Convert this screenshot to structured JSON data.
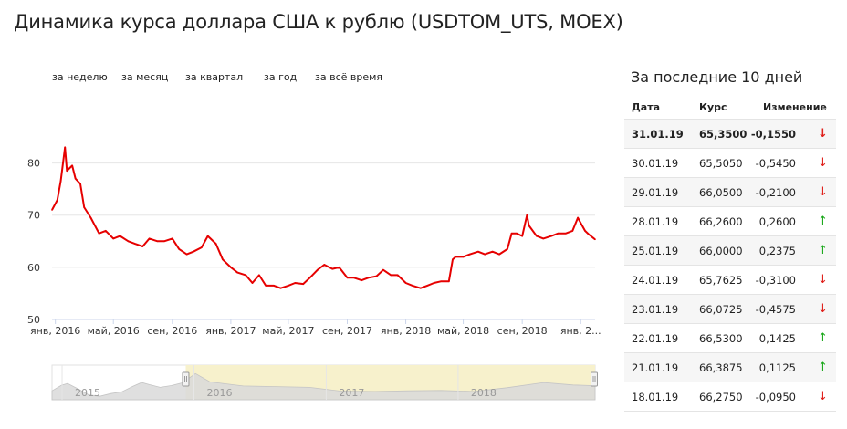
{
  "page": {
    "title": "Динамика курса доллара США к рублю (USDTOM_UTS, MOEX)"
  },
  "period_tabs": [
    {
      "label": "за неделю"
    },
    {
      "label": "за месяц"
    },
    {
      "label": "за квартал"
    },
    {
      "label": "за год"
    },
    {
      "label": "за всё время"
    }
  ],
  "table": {
    "title": "За последние 10 дней",
    "headers": {
      "date": "Дата",
      "rate": "Курс",
      "change": "Изменение"
    },
    "rows": [
      {
        "date": "31.01.19",
        "rate": "65,3500",
        "change": "-0,1550",
        "direction": "down"
      },
      {
        "date": "30.01.19",
        "rate": "65,5050",
        "change": "-0,5450",
        "direction": "down"
      },
      {
        "date": "29.01.19",
        "rate": "66,0500",
        "change": "-0,2100",
        "direction": "down"
      },
      {
        "date": "28.01.19",
        "rate": "66,2600",
        "change": "0,2600",
        "direction": "up"
      },
      {
        "date": "25.01.19",
        "rate": "66,0000",
        "change": "0,2375",
        "direction": "up"
      },
      {
        "date": "24.01.19",
        "rate": "65,7625",
        "change": "-0,3100",
        "direction": "down"
      },
      {
        "date": "23.01.19",
        "rate": "66,0725",
        "change": "-0,4575",
        "direction": "down"
      },
      {
        "date": "22.01.19",
        "rate": "66,5300",
        "change": "0,1425",
        "direction": "up"
      },
      {
        "date": "21.01.19",
        "rate": "66,3875",
        "change": "0,1125",
        "direction": "up"
      },
      {
        "date": "18.01.19",
        "rate": "66,2750",
        "change": "-0,0950",
        "direction": "down"
      }
    ],
    "arrow_down_char": "↓",
    "arrow_up_char": "↑",
    "colors": {
      "down": "#e0201b",
      "up": "#1ba81b"
    }
  },
  "chart_data": {
    "type": "line",
    "title": "",
    "xlabel": "",
    "ylabel": "",
    "ylim": [
      50,
      85
    ],
    "y_ticks": [
      50,
      60,
      70,
      80
    ],
    "grid": true,
    "series_color": "#e60000",
    "x_tick_labels": [
      {
        "date": "2016-01-01",
        "label": "янв, 2016"
      },
      {
        "date": "2016-05-01",
        "label": "май, 2016"
      },
      {
        "date": "2016-09-01",
        "label": "сен, 2016"
      },
      {
        "date": "2017-01-01",
        "label": "янв, 2017"
      },
      {
        "date": "2017-05-01",
        "label": "май, 2017"
      },
      {
        "date": "2017-09-01",
        "label": "сен, 2017"
      },
      {
        "date": "2018-01-01",
        "label": "янв, 2018"
      },
      {
        "date": "2018-05-01",
        "label": "май, 2018"
      },
      {
        "date": "2018-09-01",
        "label": "сен, 2018"
      },
      {
        "date": "2019-01-01",
        "label": "янв, 2..."
      }
    ],
    "x_range": [
      "2015-12-25",
      "2019-01-31"
    ],
    "series": [
      {
        "x": [
          "2015-12-25",
          "2016-01-05",
          "2016-01-12",
          "2016-01-21",
          "2016-01-25",
          "2016-02-05",
          "2016-02-12",
          "2016-02-22",
          "2016-03-01",
          "2016-03-15",
          "2016-04-01",
          "2016-04-15",
          "2016-05-01",
          "2016-05-15",
          "2016-06-01",
          "2016-06-15",
          "2016-07-01",
          "2016-07-15",
          "2016-08-01",
          "2016-08-15",
          "2016-09-01",
          "2016-09-15",
          "2016-10-01",
          "2016-10-15",
          "2016-11-01",
          "2016-11-14",
          "2016-12-01",
          "2016-12-15",
          "2017-01-01",
          "2017-01-15",
          "2017-02-01",
          "2017-02-15",
          "2017-03-01",
          "2017-03-15",
          "2017-04-01",
          "2017-04-15",
          "2017-05-01",
          "2017-05-15",
          "2017-06-01",
          "2017-06-15",
          "2017-07-01",
          "2017-07-15",
          "2017-08-01",
          "2017-08-15",
          "2017-09-01",
          "2017-09-15",
          "2017-10-01",
          "2017-10-15",
          "2017-11-01",
          "2017-11-15",
          "2017-12-01",
          "2017-12-15",
          "2018-01-01",
          "2018-01-15",
          "2018-02-01",
          "2018-02-15",
          "2018-03-01",
          "2018-03-15",
          "2018-04-01",
          "2018-04-09",
          "2018-04-15",
          "2018-05-01",
          "2018-05-15",
          "2018-06-01",
          "2018-06-15",
          "2018-07-01",
          "2018-07-15",
          "2018-08-01",
          "2018-08-10",
          "2018-08-20",
          "2018-09-01",
          "2018-09-11",
          "2018-09-15",
          "2018-10-01",
          "2018-10-15",
          "2018-11-01",
          "2018-11-15",
          "2018-12-01",
          "2018-12-15",
          "2018-12-26",
          "2019-01-10",
          "2019-01-18",
          "2019-01-31"
        ],
        "y": [
          71.0,
          72.9,
          76.5,
          83.0,
          78.5,
          79.5,
          77.0,
          76.0,
          71.5,
          69.5,
          66.5,
          67.0,
          65.5,
          66.0,
          65.0,
          64.5,
          64.0,
          65.5,
          65.0,
          65.0,
          65.5,
          63.5,
          62.5,
          63.0,
          63.8,
          66.0,
          64.5,
          61.5,
          60.0,
          59.0,
          58.5,
          57.0,
          58.5,
          56.5,
          56.5,
          56.0,
          56.5,
          57.0,
          56.8,
          58.0,
          59.5,
          60.5,
          59.7,
          60.0,
          58.0,
          58.0,
          57.5,
          58.0,
          58.3,
          59.5,
          58.5,
          58.5,
          57.0,
          56.5,
          56.0,
          56.5,
          57.0,
          57.3,
          57.3,
          61.5,
          62.0,
          62.0,
          62.5,
          63.0,
          62.5,
          63.0,
          62.5,
          63.5,
          66.5,
          66.5,
          66.0,
          70.0,
          68.0,
          66.0,
          65.5,
          66.0,
          66.5,
          66.5,
          67.0,
          69.5,
          67.0,
          66.3,
          65.35
        ]
      }
    ],
    "navigator": {
      "year_labels": [
        "2015",
        "2016",
        "2017",
        "2018"
      ],
      "x_range": [
        "2014-12-20",
        "2019-01-31"
      ],
      "selection": [
        "2015-12-25",
        "2019-01-31"
      ],
      "x": [
        "2014-12-20",
        "2015-01-15",
        "2015-02-01",
        "2015-03-01",
        "2015-04-01",
        "2015-05-01",
        "2015-06-01",
        "2015-07-01",
        "2015-08-01",
        "2015-08-25",
        "2015-09-15",
        "2015-10-15",
        "2015-11-15",
        "2015-12-15",
        "2016-01-21",
        "2016-03-01",
        "2016-06-01",
        "2016-09-01",
        "2016-12-01",
        "2017-03-01",
        "2017-06-01",
        "2017-09-01",
        "2017-12-01",
        "2018-03-01",
        "2018-06-01",
        "2018-09-11",
        "2018-12-01",
        "2019-01-31"
      ],
      "y": [
        58.0,
        66.0,
        68.5,
        61.0,
        52.0,
        50.0,
        54.0,
        56.5,
        64.5,
        70.0,
        67.0,
        63.0,
        65.5,
        69.5,
        83.0,
        71.0,
        65.0,
        64.0,
        63.0,
        57.5,
        57.0,
        58.0,
        58.5,
        57.0,
        62.5,
        70.0,
        66.5,
        65.35
      ]
    }
  }
}
